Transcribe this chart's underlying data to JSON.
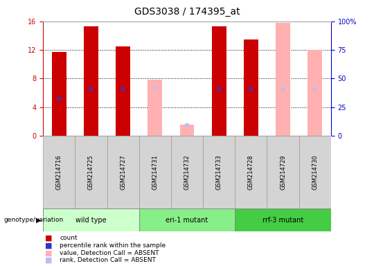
{
  "title": "GDS3038 / 174395_at",
  "samples": [
    "GSM214716",
    "GSM214725",
    "GSM214727",
    "GSM214731",
    "GSM214732",
    "GSM214733",
    "GSM214728",
    "GSM214729",
    "GSM214730"
  ],
  "groups": [
    {
      "label": "wild type",
      "indices": [
        0,
        1,
        2
      ],
      "color": "#ccffcc"
    },
    {
      "label": "eri-1 mutant",
      "indices": [
        3,
        4,
        5
      ],
      "color": "#88ee88"
    },
    {
      "label": "rrf-3 mutant",
      "indices": [
        6,
        7,
        8
      ],
      "color": "#44cc44"
    }
  ],
  "count": [
    11.7,
    15.3,
    12.5,
    null,
    null,
    15.3,
    13.5,
    null,
    null
  ],
  "rank_val": [
    5.2,
    6.5,
    6.5,
    null,
    null,
    6.5,
    6.5,
    null,
    null
  ],
  "absent_value": [
    null,
    null,
    null,
    7.8,
    1.5,
    null,
    null,
    15.8,
    12.0
  ],
  "absent_rank": [
    null,
    null,
    null,
    6.7,
    1.5,
    null,
    null,
    6.5,
    6.5
  ],
  "ylim_left": [
    0,
    16
  ],
  "ylim_right": [
    0,
    100
  ],
  "yticks_left": [
    0,
    4,
    8,
    12,
    16
  ],
  "yticks_right": [
    0,
    25,
    50,
    75,
    100
  ],
  "bar_width": 0.45,
  "red_color": "#cc0000",
  "blue_color": "#3333cc",
  "absent_pink": "#ffb0b0",
  "absent_lightblue": "#bbbbff",
  "left_axis_color": "#cc0000",
  "right_axis_color": "#0000cc",
  "grid_dotted": [
    4,
    8,
    12
  ]
}
